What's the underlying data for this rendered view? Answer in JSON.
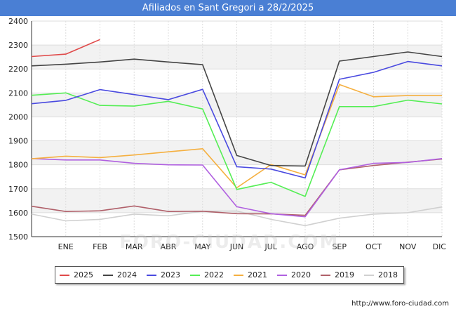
{
  "title": "Afiliados en Sant Gregori a 28/2/2025",
  "url": "http://www.foro-ciudad.com",
  "watermark": "FORO-CIUDAD.COM",
  "chart_data": {
    "type": "line",
    "title": "Afiliados en Sant Gregori a 28/2/2025",
    "categories": [
      "",
      "ENE",
      "FEB",
      "MAR",
      "ABR",
      "MAY",
      "JUN",
      "JUL",
      "AGO",
      "SEP",
      "OCT",
      "NOV",
      "DIC"
    ],
    "ylim": [
      1500,
      2400
    ],
    "yticks": [
      1500,
      1600,
      1700,
      1800,
      1900,
      2000,
      2100,
      2200,
      2300,
      2400
    ],
    "grid": true,
    "legend_position": "bottom",
    "series": [
      {
        "name": "2025",
        "color": "#e04a4a",
        "values": [
          2252,
          2262,
          2323,
          null,
          null,
          null,
          null,
          null,
          null,
          null,
          null,
          null,
          null
        ]
      },
      {
        "name": "2024",
        "color": "#444444",
        "values": [
          2213,
          2220,
          2229,
          2241,
          2229,
          2218,
          1839,
          1797,
          1795,
          2233,
          2252,
          2271,
          2252
        ]
      },
      {
        "name": "2023",
        "color": "#4a4ae0",
        "values": [
          2055,
          2069,
          2114,
          2093,
          2072,
          2115,
          1792,
          1782,
          1745,
          2157,
          2186,
          2231,
          2213
        ]
      },
      {
        "name": "2022",
        "color": "#55ee55",
        "values": [
          2090,
          2100,
          2048,
          2045,
          2065,
          2033,
          1697,
          1727,
          1668,
          2043,
          2043,
          2070,
          2054
        ]
      },
      {
        "name": "2021",
        "color": "#f5b040",
        "values": [
          1825,
          1836,
          1830,
          1841,
          1854,
          1867,
          1704,
          1801,
          1758,
          2135,
          2084,
          2089,
          2089
        ]
      },
      {
        "name": "2020",
        "color": "#b060e0",
        "values": [
          1826,
          1820,
          1820,
          1806,
          1800,
          1799,
          1625,
          1596,
          1583,
          1779,
          1806,
          1810,
          1826
        ]
      },
      {
        "name": "2019",
        "color": "#b0606a",
        "values": [
          1627,
          1605,
          1608,
          1628,
          1605,
          1606,
          1596,
          1595,
          1589,
          1779,
          1797,
          1811,
          1824
        ]
      },
      {
        "name": "2018",
        "color": "#d0d0d0",
        "values": [
          1594,
          1566,
          1572,
          1594,
          1587,
          1606,
          1607,
          1572,
          1546,
          1577,
          1594,
          1600,
          1624
        ]
      }
    ]
  }
}
